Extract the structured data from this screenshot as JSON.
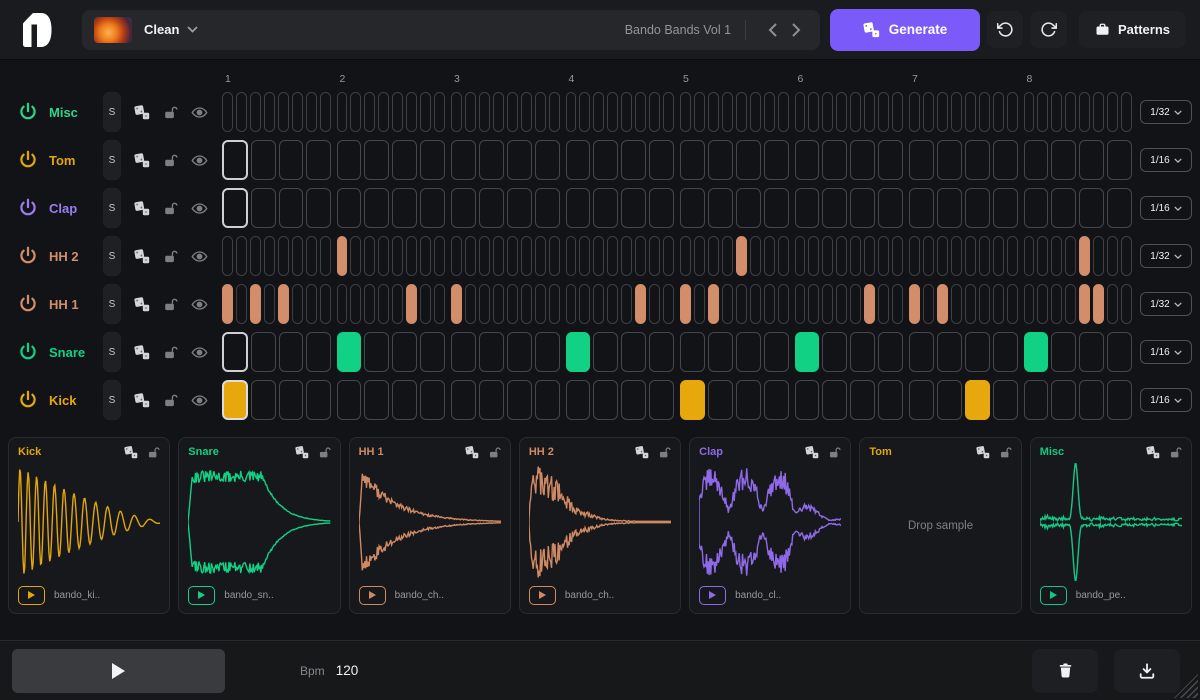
{
  "topbar": {
    "kit_name": "Clean",
    "pack_name": "Bando Bands Vol 1",
    "generate_label": "Generate",
    "patterns_label": "Patterns"
  },
  "icons": {
    "logo": "drumloop-logo",
    "kit_dropdown": "chevron-down-icon",
    "pack_prev": "chevron-left-icon",
    "pack_next": "chevron-right-icon",
    "generate": "dice-icon",
    "undo": "rotate-ccw-icon",
    "redo": "rotate-cw-icon",
    "patterns": "briefcase-icon",
    "track_power": "power-icon",
    "track_randomize": "dice-icon",
    "track_lock": "lock-open-icon",
    "track_visibility": "eye-icon",
    "rate_dropdown": "chevron-down-icon",
    "transport_play": "play-icon",
    "clear": "trash-icon",
    "export": "download-icon"
  },
  "sequencer": {
    "solo_label": "S",
    "groups": 8,
    "group_labels": [
      "1",
      "2",
      "3",
      "4",
      "5",
      "6",
      "7",
      "8"
    ],
    "playhead_step": 1,
    "tracks": [
      {
        "name": "Misc",
        "color": "#2ed487",
        "rate": "1/32",
        "steps_per_group": 8,
        "active_steps": []
      },
      {
        "name": "Tom",
        "color": "#e2a50c",
        "rate": "1/16",
        "steps_per_group": 4,
        "active_steps": []
      },
      {
        "name": "Clap",
        "color": "#9d7bf2",
        "rate": "1/16",
        "steps_per_group": 4,
        "active_steps": []
      },
      {
        "name": "HH 2",
        "color": "#d28e6b",
        "rate": "1/32",
        "steps_per_group": 8,
        "active_steps": [
          9,
          37,
          61
        ]
      },
      {
        "name": "HH 1",
        "color": "#d28e6b",
        "rate": "1/32",
        "steps_per_group": 8,
        "active_steps": [
          1,
          3,
          5,
          14,
          17,
          30,
          33,
          35,
          46,
          49,
          51,
          61,
          62
        ]
      },
      {
        "name": "Snare",
        "color": "#10d184",
        "rate": "1/16",
        "steps_per_group": 4,
        "active_steps": [
          5,
          13,
          21,
          29
        ]
      },
      {
        "name": "Kick",
        "color": "#e7a80d",
        "rate": "1/16",
        "steps_per_group": 4,
        "active_steps": [
          1,
          17,
          27
        ]
      }
    ]
  },
  "pads": [
    {
      "name": "Kick",
      "color": "#e3a50c",
      "file": "bando_ki..",
      "waveform": "kick"
    },
    {
      "name": "Snare",
      "color": "#10d184",
      "file": "bando_sn..",
      "waveform": "snare"
    },
    {
      "name": "HH 1",
      "color": "#cf8a64",
      "file": "bando_ch..",
      "waveform": "hh1"
    },
    {
      "name": "HH 2",
      "color": "#cf8a64",
      "file": "bando_ch..",
      "waveform": "hh2"
    },
    {
      "name": "Clap",
      "color": "#8f6ae8",
      "file": "bando_cl..",
      "waveform": "clap"
    },
    {
      "name": "Tom",
      "color": "#e2a50c",
      "file": null,
      "empty_label": "Drop sample",
      "waveform": null
    },
    {
      "name": "Misc",
      "color": "#16c784",
      "file": "bando_pe..",
      "waveform": "misc"
    }
  ],
  "footer": {
    "bpm_label": "Bpm",
    "bpm_value": "120"
  },
  "colors": {
    "accent": "#7a5af8",
    "background": "#121316",
    "panel": "#1f2023",
    "cell_border": "#45474c",
    "playhead_border": "#cfd0d3"
  }
}
